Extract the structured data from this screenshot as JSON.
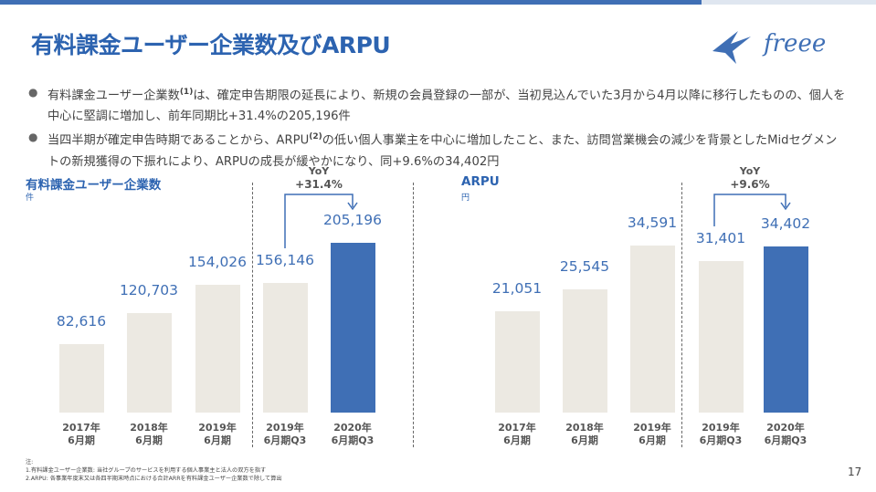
{
  "title": "有料課金ユーザー企業数及びARPU",
  "logo": {
    "text": "freee"
  },
  "bullets": [
    {
      "pre": "有料課金ユーザー企業数",
      "sup": "(1)",
      "post": "は、確定申告期限の延長により、新規の会員登録の一部が、当初見込んでいた3月から4月以降に移行したものの、個人を中心に堅調に増加し、前年同期比+31.4%の205,196件"
    },
    {
      "pre": "当四半期が確定申告時期であることから、ARPU",
      "sup": "(2)",
      "post": "の低い個人事業主を中心に増加したこと、また、訪問営業機会の減少を背景としたMidセグメントの新規獲得の下振れにより、ARPUの成長が緩やかになり、同+9.6%の34,402円"
    }
  ],
  "chart_data": [
    {
      "type": "bar",
      "title": "有料課金ユーザー企業数",
      "unit": "件",
      "categories": [
        "2017年\n6月期",
        "2018年\n6月期",
        "2019年\n6月期",
        "2019年\n6月期Q3",
        "2020年\n6月期Q3"
      ],
      "values": [
        82616,
        120703,
        154026,
        156146,
        205196
      ],
      "value_labels": [
        "82,616",
        "120,703",
        "154,026",
        "156,146",
        "205,196"
      ],
      "highlight_index": 4,
      "yoy": {
        "label": "YoY",
        "value": "+31.4%"
      },
      "ylim": [
        0,
        205196
      ]
    },
    {
      "type": "bar",
      "title": "ARPU",
      "unit": "円",
      "categories": [
        "2017年\n6月期",
        "2018年\n6月期",
        "2019年\n6月期",
        "2019年\n6月期Q3",
        "2020年\n6月期Q3"
      ],
      "values": [
        21051,
        25545,
        34591,
        31401,
        34402
      ],
      "value_labels": [
        "21,051",
        "25,545",
        "34,591",
        "31,401",
        "34,402"
      ],
      "highlight_index": 4,
      "yoy": {
        "label": "YoY",
        "value": "+9.6%"
      },
      "ylim": [
        0,
        34591
      ]
    }
  ],
  "notes": {
    "heading": "注:",
    "lines": [
      "1.有料課金ユーザー企業数: 当社グループのサービスを利用する個人事業主と法人の双方を指す",
      "2.ARPU: 各事業年度末又は各四半期末時点における合計ARRを有料課金ユーザー企業数で除して算出"
    ]
  },
  "page_number": "17",
  "colors": {
    "accent": "#3f6fb5",
    "title": "#2c63b0",
    "bar": "#ece9e2"
  }
}
